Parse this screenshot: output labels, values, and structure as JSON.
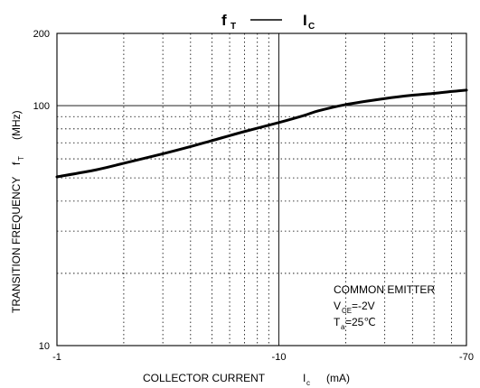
{
  "chart_data": {
    "type": "line",
    "title": {
      "left_main": "f",
      "left_sub": "T",
      "dash": "——",
      "right_main": "I",
      "right_sub": "C"
    },
    "x_axis": {
      "scale": "log",
      "range": [
        1,
        70
      ],
      "ticks": [
        {
          "value": 1,
          "label": "-1"
        },
        {
          "value": 10,
          "label": "-10"
        },
        {
          "value": 70,
          "label": "-70"
        }
      ],
      "minor_gridlines": [
        2,
        3,
        4,
        5,
        6,
        7,
        8,
        9,
        20,
        30,
        40,
        50,
        60
      ],
      "label_parts": {
        "main": "COLLECTOR CURRENT",
        "sym": "I",
        "sub": "c",
        "unit": "(mA)"
      }
    },
    "y_axis": {
      "scale": "log",
      "range": [
        10,
        200
      ],
      "ticks": [
        {
          "value": 200,
          "label": "200"
        },
        {
          "value": 100,
          "label": "100"
        },
        {
          "value": 10,
          "label": "10"
        }
      ],
      "minor_gridlines": [
        20,
        30,
        40,
        50,
        60,
        70,
        80,
        90
      ],
      "label_parts": {
        "main": "TRANSITION FREQUENCY",
        "sym": "f",
        "sub": "T",
        "unit": "(MHz)"
      }
    },
    "grid": true,
    "series": [
      {
        "x": [
          1,
          1.5,
          2,
          3,
          4,
          5,
          7,
          10,
          13,
          15,
          20,
          30,
          40,
          50,
          60,
          70
        ],
        "y": [
          50.5,
          54,
          57.5,
          63,
          67.5,
          71.5,
          78,
          85,
          91,
          95,
          101,
          107,
          110.5,
          112.5,
          114.5,
          116
        ]
      }
    ],
    "annotation": {
      "line1": "COMMON EMITTER",
      "line2": {
        "sym": "V",
        "sub": "CE",
        "rest": "=-2V"
      },
      "line3": {
        "sym": "T",
        "sub": "a",
        "rest": "=25℃"
      }
    }
  }
}
